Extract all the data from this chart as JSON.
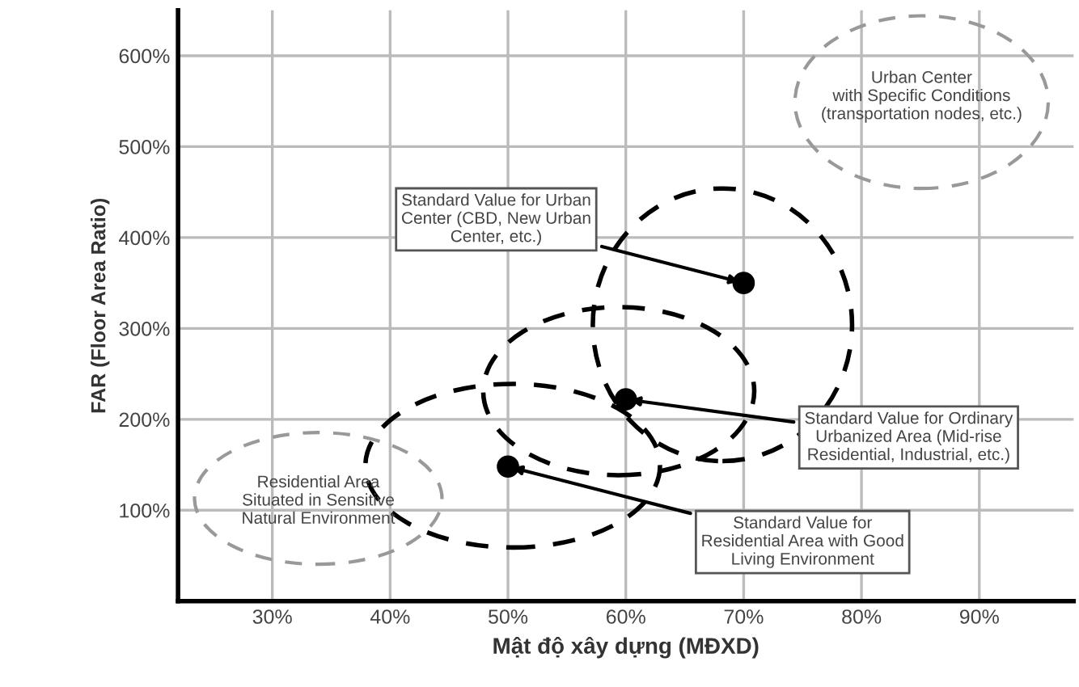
{
  "chart_data": {
    "type": "scatter",
    "xlabel": "Mật độ xây dựng (MĐXD)",
    "ylabel": "FAR (Floor Area Ratio)",
    "x": [
      50,
      60,
      70
    ],
    "series": [
      {
        "color": "#000000",
        "values": [
          148,
          222,
          350
        ]
      }
    ],
    "marker": "circle",
    "xlim": [
      22,
      98
    ],
    "ylim": [
      0,
      650
    ],
    "xticks": [
      {
        "value": 30,
        "label": "30%"
      },
      {
        "value": 40,
        "label": "40%"
      },
      {
        "value": 50,
        "label": "50%"
      },
      {
        "value": 60,
        "label": "60%"
      },
      {
        "value": 70,
        "label": "70%"
      },
      {
        "value": 80,
        "label": "80%"
      },
      {
        "value": 90,
        "label": "90%"
      }
    ],
    "yticks": [
      {
        "value": 100,
        "label": "100%"
      },
      {
        "value": 200,
        "label": "200%"
      },
      {
        "value": 300,
        "label": "300%"
      },
      {
        "value": 400,
        "label": "400%"
      },
      {
        "value": 500,
        "label": "500%"
      },
      {
        "value": 600,
        "label": "600%"
      }
    ],
    "grid": true,
    "annotations": [
      {
        "text": "Standard Value for Urban\nCenter (CBD, New Urban\nCenter, etc.)",
        "x": 70,
        "y": 350
      },
      {
        "text": "Standard Value for Ordinary\nUrbanized Area (Mid-rise\nResidential, Industrial, etc.)",
        "x": 60,
        "y": 222
      },
      {
        "text": "Standard Value for\nResidential Area with Good\nLiving Environment",
        "x": 50,
        "y": 148
      },
      "Urban Center\nwith Specific Conditions\n(transportation nodes, etc.)",
      "Residential Area\nSituated in Sensitive\nNatural Environment"
    ]
  }
}
